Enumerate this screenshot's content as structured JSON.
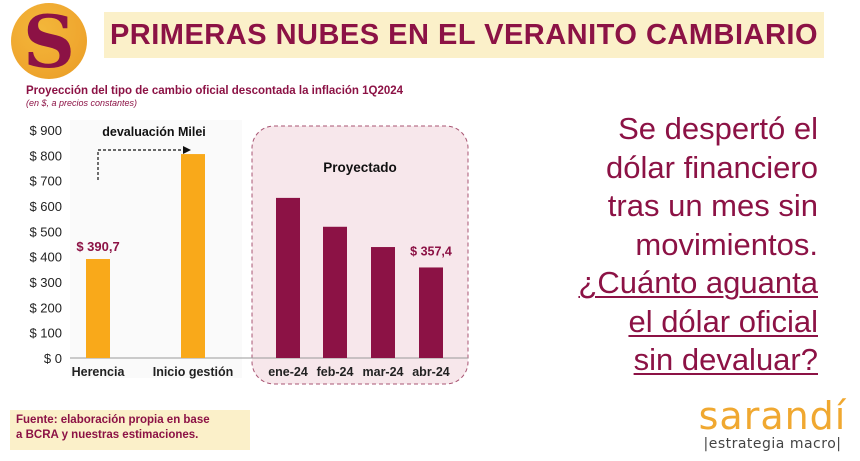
{
  "header": {
    "logo_letter": "S",
    "title": "PRIMERAS NUBES EN EL VERANITO CAMBIARIO"
  },
  "chart_data": {
    "type": "bar",
    "title": "Proyección del tipo de cambio oficial descontada la inflación 1Q2024",
    "subtitle": "(en $, a precios constantes)",
    "ylim": [
      0,
      900
    ],
    "yticks": [
      "$ 0",
      "$ 100",
      "$ 200",
      "$ 300",
      "$ 400",
      "$ 500",
      "$ 600",
      "$ 700",
      "$ 800",
      "$ 900"
    ],
    "grid": false,
    "panels": [
      {
        "categories": [
          "Herencia",
          "Inicio gestión"
        ],
        "values": [
          390.7,
          805
        ],
        "color": "#f9a91a",
        "data_labels": [
          "$ 390,7",
          ""
        ],
        "annotation": "devaluación Milei"
      },
      {
        "label": "Proyectado",
        "categories": [
          "ene-24",
          "feb-24",
          "mar-24",
          "abr-24"
        ],
        "values": [
          632,
          518,
          438,
          357.4
        ],
        "color": "#8c1245",
        "data_labels": [
          "",
          "",
          "",
          "$ 357,4"
        ]
      }
    ]
  },
  "right_text": {
    "lines": [
      "Se despertó el",
      "dólar financiero",
      "tras un mes sin",
      "movimientos."
    ],
    "question_lines": [
      "¿Cuánto aguanta",
      "el dólar oficial",
      "sin devaluar?"
    ]
  },
  "source": {
    "text_1": "Fuente: elaboración propia en base",
    "text_2": "a BCRA y nuestras estimaciones."
  },
  "brand": {
    "name": "sarandí",
    "tagline": "|estrategia macro|"
  },
  "colors": {
    "brand": "#8c1245",
    "accent": "#f9a91a",
    "highlight": "#fbf0c9",
    "projection_panel": "#f7e7eb"
  }
}
